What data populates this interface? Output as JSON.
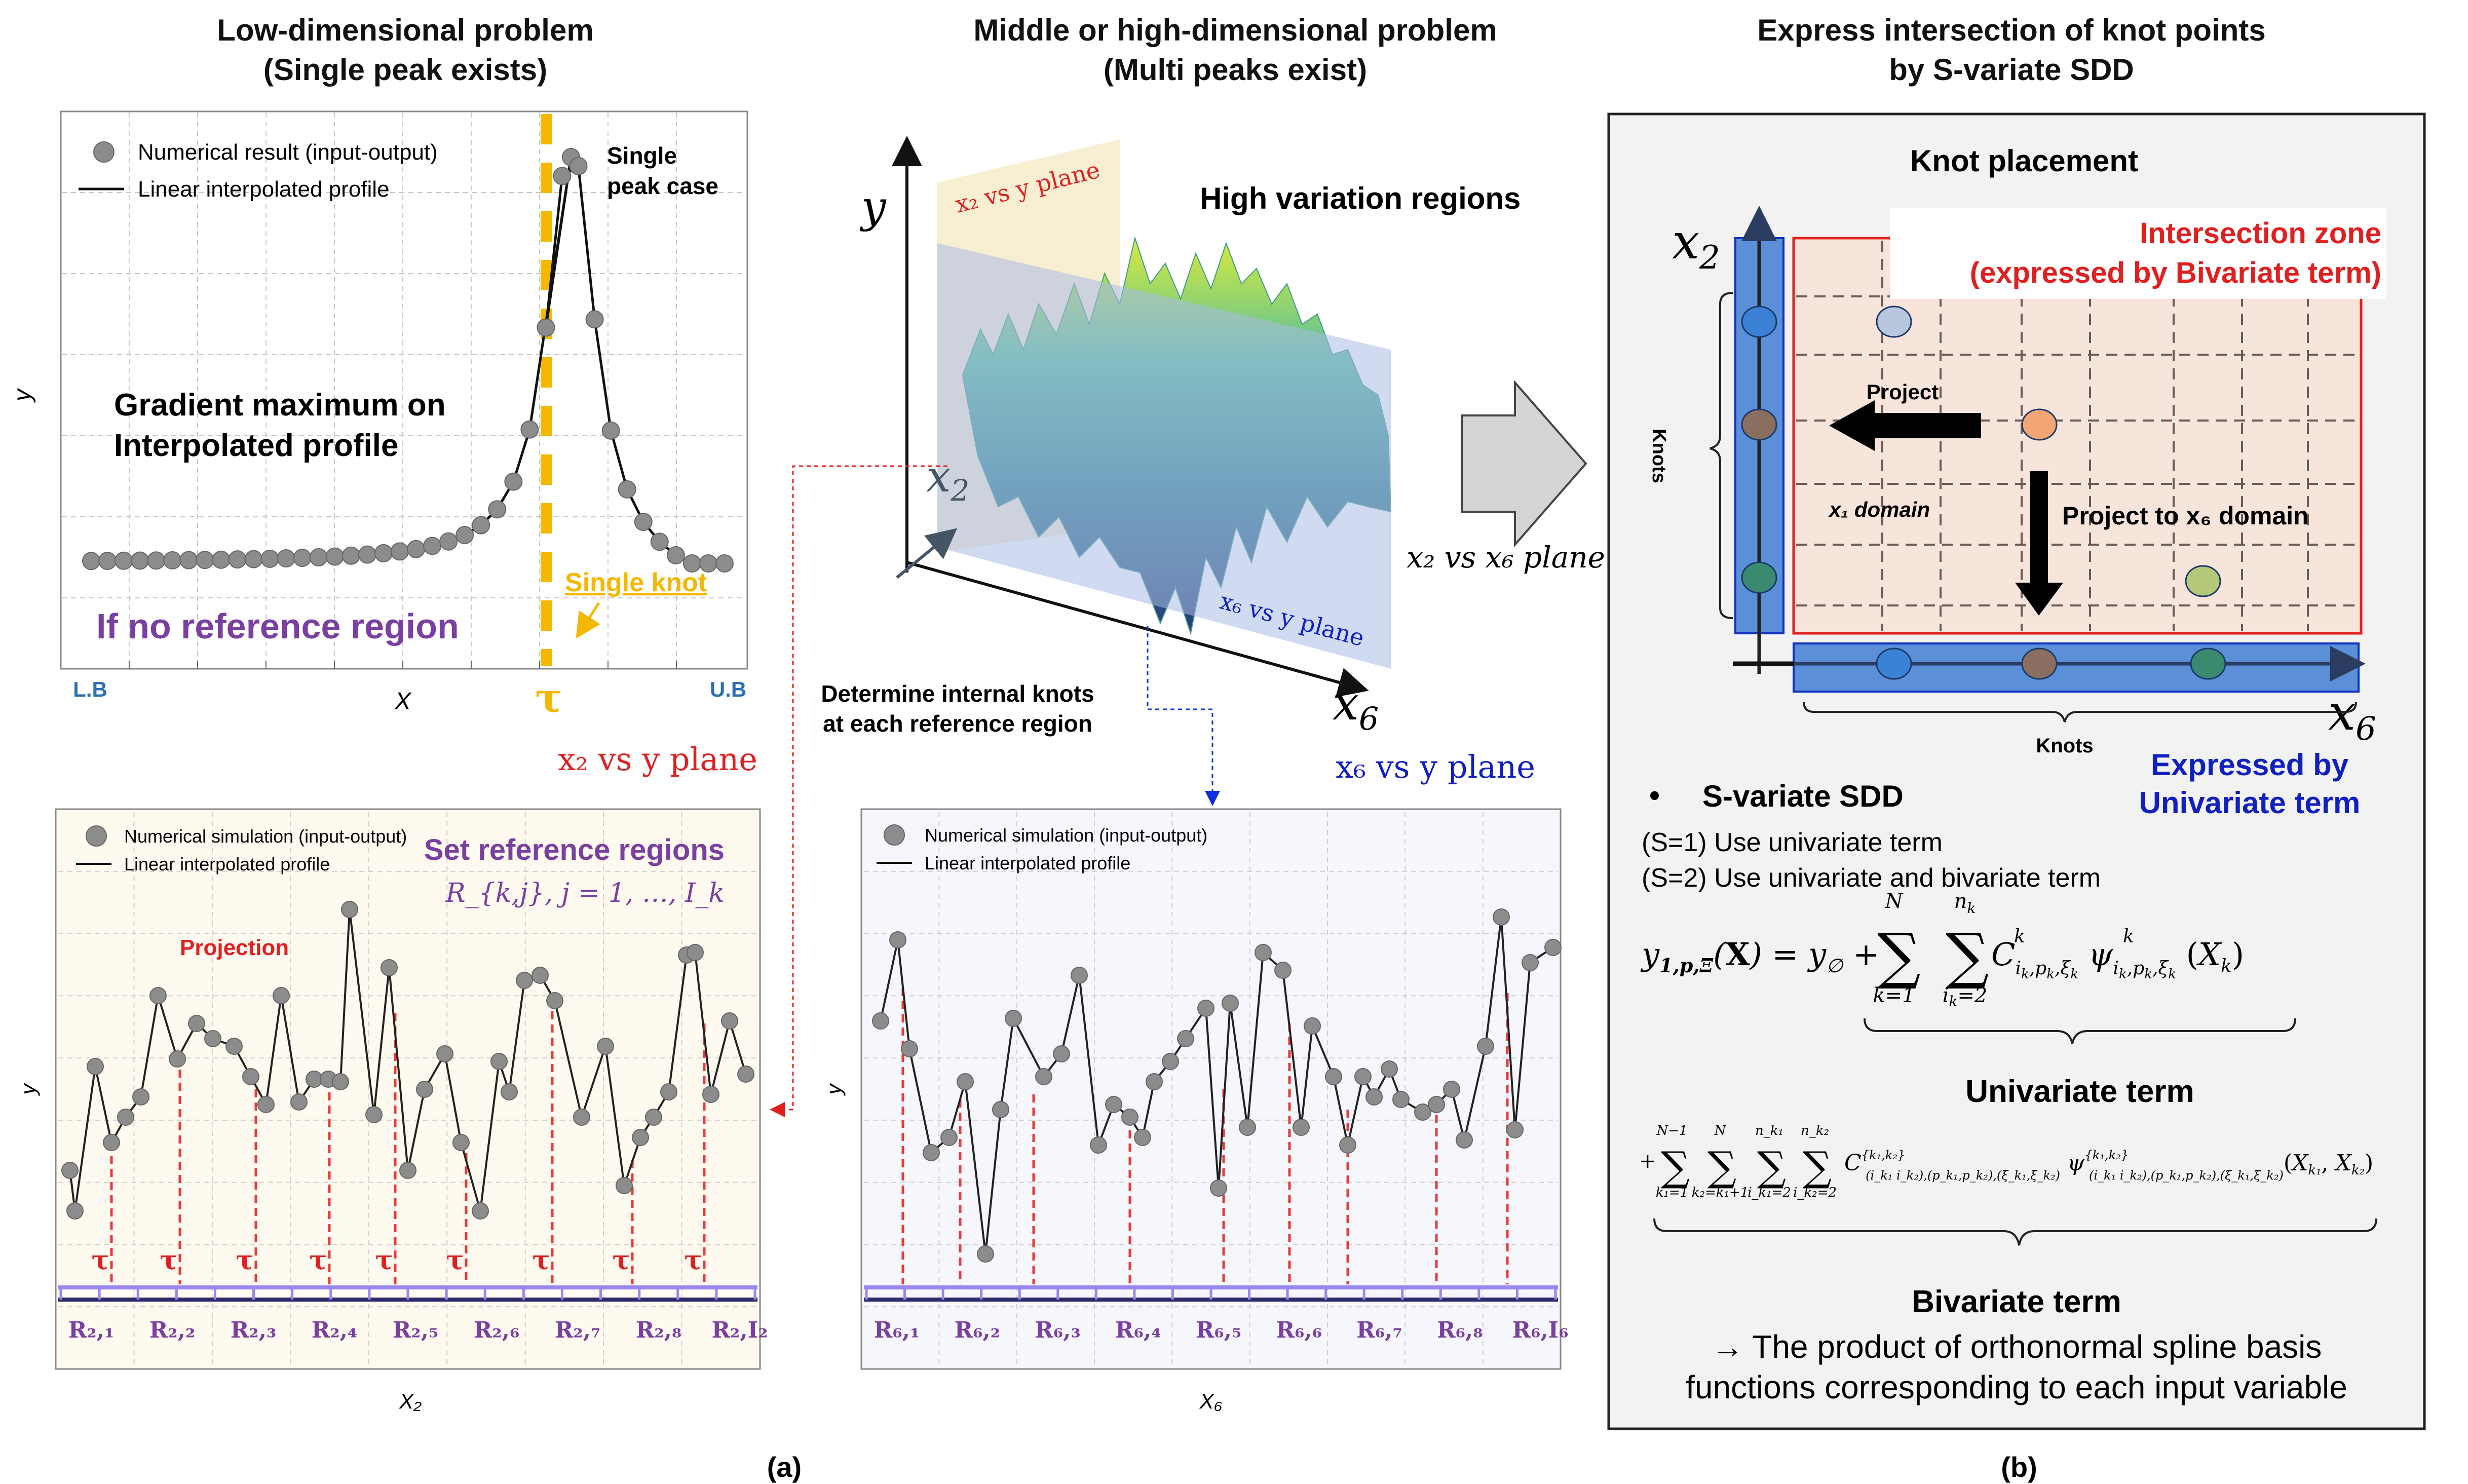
{
  "panel_a": {
    "left_title_1": "Low-dimensional problem",
    "left_title_2": "(Single peak exists)",
    "mid_title_1": "Middle or high-dimensional problem",
    "mid_title_2": "(Multi peaks exist)",
    "top_plot": {
      "legend_points": "Numerical result (input-output)",
      "legend_line": "Linear interpolated profile",
      "peak_note_1": "Single",
      "peak_note_2": "peak case",
      "gradient_1": "Gradient maximum on",
      "gradient_2": "Interpolated profile",
      "single_knot": "Single knot",
      "no_reference": "If no reference region",
      "ylabel": "y",
      "xlabel": "X",
      "lb": "L.B",
      "ub": "U.B",
      "tau": "τ"
    },
    "surface": {
      "y_axis": "y",
      "x2_axis": "x",
      "x2_sub": "2",
      "x6_axis": "x",
      "x6_sub": "6",
      "back_plane": "x₂ vs y plane",
      "front_plane": "x₆ vs y plane",
      "high_variation": "High variation regions",
      "determine_1": "Determine internal knots",
      "determine_2": "at each reference region"
    },
    "x2_plane_label": "x₂ vs y plane",
    "x6_plane_label": "x₆ vs y plane",
    "arrow_caption": "x₂ vs x₆ plane",
    "bottom_left": {
      "legend_points": "Numerical simulation (input-output)",
      "legend_line": "Linear interpolated profile",
      "set_regions": "Set reference regions",
      "regions_formula": "R_{k,j}, j = 1, …, I_k",
      "projection": "Projection",
      "ylabel": "y",
      "xlabel": "X₂",
      "tau": "τ",
      "regions": [
        "R₂,₁",
        "R₂,₂",
        "R₂,₃",
        "R₂,₄",
        "R₂,₅",
        "R₂,₆",
        "R₂,₇",
        "R₂,₈",
        "R₂,I₂"
      ]
    },
    "bottom_mid": {
      "legend_points": "Numerical simulation (input-output)",
      "legend_line": "Linear interpolated profile",
      "ylabel": "y",
      "xlabel": "X₆",
      "regions": [
        "R₆,₁",
        "R₆,₂",
        "R₆,₃",
        "R₆,₄",
        "R₆,₅",
        "R₆,₆",
        "R₆,₇",
        "R₆,₈",
        "R₆,I₆"
      ]
    },
    "caption": "(a)"
  },
  "panel_b": {
    "title_1": "Express intersection of knot points",
    "title_2": "by S-variate SDD",
    "knot_placement": "Knot placement",
    "intersection_1": "Intersection zone",
    "intersection_2": "(expressed by Bivariate term)",
    "x2_axis": "x",
    "x2_sub": "2",
    "x6_axis": "x",
    "x6_sub": "6",
    "knots_vertical": "Knots",
    "knots_horizontal": "Knots",
    "project": "Project",
    "x1_domain": "x₁ domain",
    "project_x6": "Project to x₆ domain",
    "expressed_1": "Expressed by",
    "expressed_2": "Univariate term",
    "bullet": "•",
    "sdd_title": "S-variate SDD",
    "s1": "(S=1) Use univariate term",
    "s2": "(S=2) Use univariate and bivariate term",
    "univariate_term": "Univariate term",
    "bivariate_term": "Bivariate term",
    "product_1": "→ The product of orthonormal spline basis",
    "product_2": "functions corresponding to each input variable",
    "caption": "(b)"
  },
  "colors": {
    "red": "#e02020",
    "blue": "#1020c0",
    "purple": "#7a3fa0",
    "gold": "#f5b800",
    "regionbar": "#9a86f0",
    "knotbox": "#5b8fd8"
  }
}
